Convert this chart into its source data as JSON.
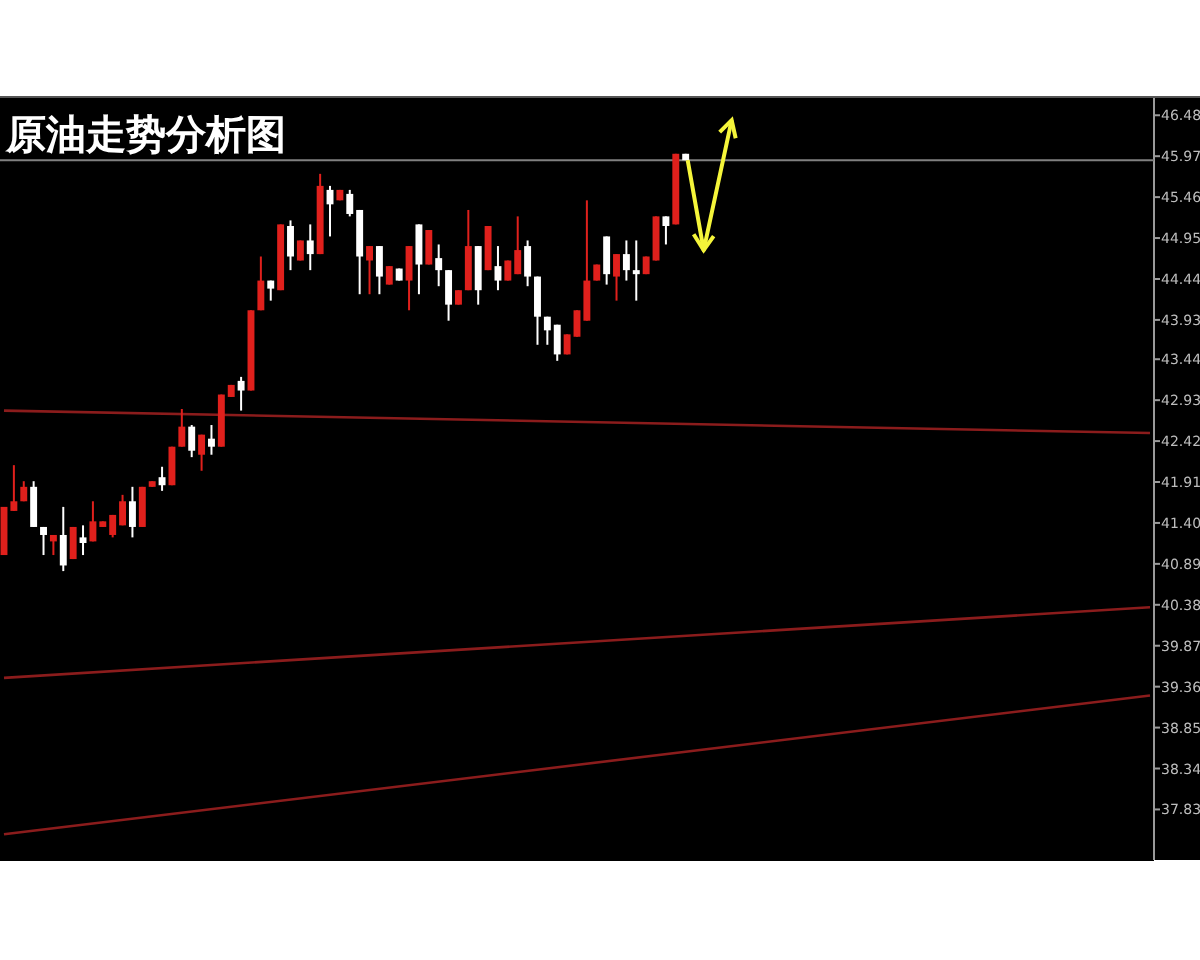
{
  "chart_data": {
    "type": "candlestick",
    "title": "原油走势分析图",
    "categories": [
      null,
      null,
      null,
      null,
      null,
      null,
      null,
      null,
      null,
      null,
      null,
      null,
      null,
      null,
      null,
      null,
      null,
      null,
      null,
      null,
      null,
      null,
      null,
      null,
      null,
      null,
      null,
      null,
      null,
      null,
      null,
      null,
      null,
      null,
      null,
      null,
      null,
      null,
      null,
      null,
      null,
      null,
      null,
      null,
      null,
      null,
      null,
      null,
      null,
      null,
      null,
      null,
      null,
      null,
      null,
      null,
      null,
      null,
      null,
      null,
      null,
      null,
      null,
      null,
      null,
      null,
      null,
      null,
      null,
      null,
      null,
      null,
      null,
      null,
      null,
      null,
      null,
      null,
      null,
      null,
      null,
      null,
      null,
      null,
      null,
      null,
      null,
      null,
      null,
      null,
      null,
      null,
      null,
      null,
      null,
      null,
      null,
      null,
      null,
      null,
      null,
      null,
      null,
      null,
      null,
      null,
      null,
      null,
      null,
      null,
      null,
      null,
      null,
      null,
      null,
      null,
      null
    ],
    "ohlc": [
      [
        41.0,
        41.6,
        41.0,
        41.6
      ],
      [
        41.55,
        42.12,
        41.55,
        41.67
      ],
      [
        41.67,
        41.92,
        41.67,
        41.85
      ],
      [
        41.85,
        41.92,
        41.35,
        41.35
      ],
      [
        41.35,
        41.35,
        41.0,
        41.25
      ],
      [
        41.17,
        41.25,
        41.0,
        41.25
      ],
      [
        41.25,
        41.6,
        40.8,
        40.87
      ],
      [
        40.95,
        41.35,
        40.95,
        41.35
      ],
      [
        41.22,
        41.37,
        41.0,
        41.15
      ],
      [
        41.17,
        41.67,
        41.17,
        41.42
      ],
      [
        41.35,
        41.42,
        41.35,
        41.42
      ],
      [
        41.25,
        41.5,
        41.22,
        41.5
      ],
      [
        41.37,
        41.75,
        41.37,
        41.67
      ],
      [
        41.67,
        41.85,
        41.22,
        41.35
      ],
      [
        41.35,
        41.85,
        41.35,
        41.85
      ],
      [
        41.85,
        41.92,
        41.85,
        41.92
      ],
      [
        41.97,
        42.1,
        41.8,
        41.87
      ],
      [
        41.87,
        42.35,
        41.87,
        42.35
      ],
      [
        42.35,
        42.82,
        42.35,
        42.6
      ],
      [
        42.6,
        42.62,
        42.22,
        42.3
      ],
      [
        42.25,
        42.5,
        42.05,
        42.5
      ],
      [
        42.45,
        42.62,
        42.25,
        42.35
      ],
      [
        42.35,
        43.0,
        42.35,
        43.0
      ],
      [
        42.97,
        43.12,
        42.97,
        43.12
      ],
      [
        43.17,
        43.22,
        42.8,
        43.05
      ],
      [
        43.05,
        44.05,
        43.05,
        44.05
      ],
      [
        44.05,
        44.72,
        44.05,
        44.42
      ],
      [
        44.42,
        44.42,
        44.17,
        44.32
      ],
      [
        44.3,
        45.12,
        44.3,
        45.12
      ],
      [
        45.1,
        45.17,
        44.55,
        44.72
      ],
      [
        44.67,
        44.92,
        44.67,
        44.92
      ],
      [
        44.92,
        45.12,
        44.55,
        44.75
      ],
      [
        44.75,
        45.75,
        44.75,
        45.6
      ],
      [
        45.55,
        45.6,
        44.97,
        45.37
      ],
      [
        45.42,
        45.55,
        45.42,
        45.55
      ],
      [
        45.5,
        45.55,
        45.22,
        45.25
      ],
      [
        45.3,
        45.3,
        44.25,
        44.72
      ],
      [
        44.67,
        44.85,
        44.25,
        44.85
      ],
      [
        44.85,
        44.85,
        44.25,
        44.47
      ],
      [
        44.37,
        44.6,
        44.37,
        44.6
      ],
      [
        44.57,
        44.57,
        44.42,
        44.42
      ],
      [
        44.42,
        44.85,
        44.05,
        44.85
      ],
      [
        45.12,
        45.12,
        44.25,
        44.62
      ],
      [
        44.62,
        45.05,
        44.62,
        45.05
      ],
      [
        44.7,
        44.87,
        44.35,
        44.55
      ],
      [
        44.55,
        44.55,
        43.92,
        44.12
      ],
      [
        44.12,
        44.3,
        44.12,
        44.3
      ],
      [
        44.3,
        45.3,
        44.3,
        44.85
      ],
      [
        44.85,
        44.85,
        44.12,
        44.3
      ],
      [
        44.55,
        45.1,
        44.55,
        45.1
      ],
      [
        44.6,
        44.85,
        44.3,
        44.42
      ],
      [
        44.42,
        44.67,
        44.42,
        44.67
      ],
      [
        44.5,
        45.22,
        44.5,
        44.8
      ],
      [
        44.85,
        44.92,
        44.35,
        44.47
      ],
      [
        44.47,
        44.47,
        43.62,
        43.97
      ],
      [
        43.97,
        43.97,
        43.62,
        43.8
      ],
      [
        43.87,
        43.87,
        43.42,
        43.5
      ],
      [
        43.5,
        43.75,
        43.5,
        43.75
      ],
      [
        43.72,
        44.05,
        43.72,
        44.05
      ],
      [
        43.92,
        45.42,
        43.92,
        44.42
      ],
      [
        44.42,
        44.62,
        44.42,
        44.62
      ],
      [
        44.97,
        44.97,
        44.37,
        44.5
      ],
      [
        44.47,
        44.75,
        44.17,
        44.75
      ],
      [
        44.75,
        44.92,
        44.42,
        44.55
      ],
      [
        44.55,
        44.92,
        44.17,
        44.5
      ],
      [
        44.5,
        44.72,
        44.5,
        44.72
      ],
      [
        44.67,
        45.22,
        44.67,
        45.22
      ],
      [
        45.22,
        45.22,
        44.87,
        45.1
      ],
      [
        45.12,
        46.0,
        45.12,
        46.0
      ],
      [
        46.0,
        46.0,
        45.92,
        45.92
      ],
      null,
      null,
      null,
      null,
      null,
      null,
      null,
      null,
      null,
      null,
      null,
      null,
      null,
      null,
      null,
      null,
      null,
      null,
      null,
      null,
      null,
      null,
      null,
      null,
      null,
      null,
      null,
      null,
      null,
      null,
      null,
      null,
      null,
      null,
      null,
      null,
      null,
      null,
      null,
      null,
      null,
      null,
      null,
      null,
      null,
      null,
      null
    ],
    "colors": [
      "#e0201c",
      "#e0201c",
      "#e0201c",
      "#ffffff",
      "#ffffff",
      "#e0201c",
      "#ffffff",
      "#e0201c",
      "#ffffff",
      "#e0201c",
      "#e0201c",
      "#e0201c",
      "#e0201c",
      "#ffffff",
      "#e0201c",
      "#e0201c",
      "#ffffff",
      "#e0201c",
      "#e0201c",
      "#ffffff",
      "#e0201c",
      "#ffffff",
      "#e0201c",
      "#e0201c",
      "#ffffff",
      "#e0201c",
      "#e0201c",
      "#ffffff",
      "#e0201c",
      "#ffffff",
      "#e0201c",
      "#ffffff",
      "#e0201c",
      "#ffffff",
      "#e0201c",
      "#ffffff",
      "#ffffff",
      "#e0201c",
      "#ffffff",
      "#e0201c",
      "#ffffff",
      "#e0201c",
      "#ffffff",
      "#e0201c",
      "#ffffff",
      "#ffffff",
      "#e0201c",
      "#e0201c",
      "#ffffff",
      "#e0201c",
      "#ffffff",
      "#e0201c",
      "#e0201c",
      "#ffffff",
      "#ffffff",
      "#ffffff",
      "#ffffff",
      "#e0201c",
      "#e0201c",
      "#e0201c",
      "#e0201c",
      "#ffffff",
      "#e0201c",
      "#ffffff",
      "#ffffff",
      "#e0201c",
      "#e0201c",
      "#ffffff",
      "#e0201c",
      "#ffffff",
      null,
      null,
      null,
      null,
      null,
      null,
      null,
      null,
      null,
      null,
      null,
      null,
      null,
      null,
      null,
      null,
      null,
      null,
      null,
      null,
      null,
      null,
      null,
      null,
      null,
      null,
      null,
      null,
      null,
      null,
      null,
      null,
      null,
      null,
      null,
      null,
      null,
      null,
      null,
      null,
      null,
      null,
      null,
      null,
      null,
      null,
      null
    ],
    "series": [
      {
        "type": "line",
        "color": "#8b1c1c",
        "values": [
          42.8,
          null,
          null,
          null,
          null,
          null,
          null,
          null,
          null,
          null,
          null,
          null,
          null,
          null,
          null,
          null,
          null,
          null,
          null,
          null,
          null,
          null,
          null,
          null,
          null,
          null,
          null,
          null,
          null,
          null,
          null,
          null,
          null,
          null,
          null,
          null,
          null,
          null,
          null,
          null,
          null,
          null,
          null,
          null,
          null,
          null,
          null,
          null,
          null,
          null,
          null,
          null,
          null,
          null,
          null,
          null,
          null,
          null,
          null,
          null,
          null,
          null,
          null,
          null,
          null,
          null,
          null,
          null,
          null,
          null,
          null,
          null,
          null,
          null,
          null,
          null,
          null,
          null,
          null,
          null,
          null,
          null,
          null,
          null,
          null,
          null,
          null,
          null,
          null,
          null,
          null,
          null,
          null,
          null,
          null,
          null,
          null,
          null,
          null,
          null,
          null,
          null,
          null,
          null,
          null,
          null,
          null,
          null,
          null,
          null,
          null,
          null,
          null,
          null,
          null,
          null,
          42.52
        ]
      },
      {
        "type": "line",
        "color": "#8b1c1c",
        "values": [
          39.47,
          null,
          null,
          null,
          null,
          null,
          null,
          null,
          null,
          null,
          null,
          null,
          null,
          null,
          null,
          null,
          null,
          null,
          null,
          null,
          null,
          null,
          null,
          null,
          null,
          null,
          null,
          null,
          null,
          null,
          null,
          null,
          null,
          null,
          null,
          null,
          null,
          null,
          null,
          null,
          null,
          null,
          null,
          null,
          null,
          null,
          null,
          null,
          null,
          null,
          null,
          null,
          null,
          null,
          null,
          null,
          null,
          null,
          null,
          null,
          null,
          null,
          null,
          null,
          null,
          null,
          null,
          null,
          null,
          null,
          null,
          null,
          null,
          null,
          null,
          null,
          null,
          null,
          null,
          null,
          null,
          null,
          null,
          null,
          null,
          null,
          null,
          null,
          null,
          null,
          null,
          null,
          null,
          null,
          null,
          null,
          null,
          null,
          null,
          null,
          null,
          null,
          null,
          null,
          null,
          null,
          null,
          null,
          null,
          null,
          null,
          null,
          null,
          null,
          null,
          null,
          40.35
        ]
      },
      {
        "type": "line",
        "color": "#8b1c1c",
        "values": [
          37.52,
          null,
          null,
          null,
          null,
          null,
          null,
          null,
          null,
          null,
          null,
          null,
          null,
          null,
          null,
          null,
          null,
          null,
          null,
          null,
          null,
          null,
          null,
          null,
          null,
          null,
          null,
          null,
          null,
          null,
          null,
          null,
          null,
          null,
          null,
          null,
          null,
          null,
          null,
          null,
          null,
          null,
          null,
          null,
          null,
          null,
          null,
          null,
          null,
          null,
          null,
          null,
          null,
          null,
          null,
          null,
          null,
          null,
          null,
          null,
          null,
          null,
          null,
          null,
          null,
          null,
          null,
          null,
          null,
          null,
          null,
          null,
          null,
          null,
          null,
          null,
          null,
          null,
          null,
          null,
          null,
          null,
          null,
          null,
          null,
          null,
          null,
          null,
          null,
          null,
          null,
          null,
          null,
          null,
          null,
          null,
          null,
          null,
          null,
          null,
          null,
          null,
          null,
          null,
          null,
          null,
          null,
          null,
          null,
          null,
          null,
          null,
          null,
          null,
          null,
          null,
          39.25
        ]
      }
    ],
    "ref_lines": [
      {
        "axis": "y",
        "value": 45.92,
        "color": "#808080"
      }
    ],
    "ylim": [
      37.2,
      46.72
    ],
    "yticks": [
      46.48,
      45.97,
      45.46,
      44.95,
      44.44,
      43.93,
      43.44,
      42.93,
      42.42,
      41.91,
      {
        "value": 41.4,
        "label": "41.40"
      },
      40.89,
      40.38,
      39.87,
      39.36,
      38.85,
      38.34,
      37.83
    ],
    "tick_labels": "y",
    "grid": false
  }
}
